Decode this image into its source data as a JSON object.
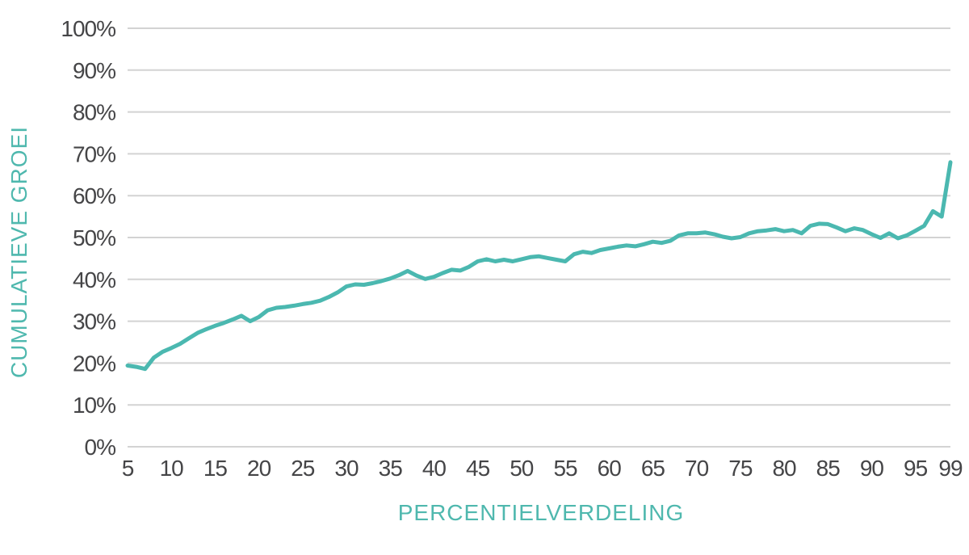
{
  "page": {
    "background": "#FFFFFF"
  },
  "chart_data": {
    "type": "line",
    "title": "",
    "xlabel": "PERCENTIELVERDELING",
    "ylabel": "CUMULATIEVE GROEI",
    "legend": "none",
    "grid": "horizontal",
    "xlim": [
      5,
      99
    ],
    "ylim": [
      0,
      100
    ],
    "x_ticks": [
      5,
      10,
      15,
      20,
      25,
      30,
      35,
      40,
      45,
      50,
      55,
      60,
      65,
      70,
      75,
      80,
      85,
      90,
      95,
      99
    ],
    "y_ticks": [
      "0%",
      "10%",
      "20%",
      "30%",
      "40%",
      "50%",
      "60%",
      "70%",
      "80%",
      "90%",
      "100%"
    ],
    "x": [
      5,
      6,
      7,
      8,
      9,
      10,
      11,
      12,
      13,
      14,
      15,
      16,
      17,
      18,
      19,
      20,
      21,
      22,
      23,
      24,
      25,
      26,
      27,
      28,
      29,
      30,
      31,
      32,
      33,
      34,
      35,
      36,
      37,
      38,
      39,
      40,
      41,
      42,
      43,
      44,
      45,
      46,
      47,
      48,
      49,
      50,
      51,
      52,
      53,
      54,
      55,
      56,
      57,
      58,
      59,
      60,
      61,
      62,
      63,
      64,
      65,
      66,
      67,
      68,
      69,
      70,
      71,
      72,
      73,
      74,
      75,
      76,
      77,
      78,
      79,
      80,
      81,
      82,
      83,
      84,
      85,
      86,
      87,
      88,
      89,
      90,
      91,
      92,
      93,
      94,
      95,
      96,
      97,
      98,
      99
    ],
    "values": [
      19.4,
      19.1,
      18.6,
      21.3,
      22.7,
      23.6,
      24.6,
      25.9,
      27.2,
      28.1,
      28.9,
      29.6,
      30.4,
      31.3,
      30.0,
      31.0,
      32.6,
      33.2,
      33.4,
      33.7,
      34.1,
      34.4,
      34.9,
      35.8,
      36.9,
      38.3,
      38.8,
      38.7,
      39.1,
      39.6,
      40.2,
      41.0,
      42.0,
      40.9,
      40.1,
      40.6,
      41.5,
      42.3,
      42.1,
      43.0,
      44.3,
      44.8,
      44.3,
      44.7,
      44.3,
      44.8,
      45.3,
      45.5,
      45.1,
      44.7,
      44.3,
      46.0,
      46.6,
      46.3,
      47.0,
      47.4,
      47.8,
      48.1,
      47.9,
      48.4,
      49.0,
      48.7,
      49.2,
      50.5,
      51.0,
      51.0,
      51.2,
      50.8,
      50.2,
      49.8,
      50.1,
      51.0,
      51.5,
      51.7,
      52.0,
      51.5,
      51.8,
      51.0,
      52.8,
      53.3,
      53.2,
      52.4,
      51.5,
      52.2,
      51.8,
      50.8,
      49.9,
      51.0,
      49.8,
      50.5,
      51.6,
      52.8,
      56.3,
      55.0,
      68.0
    ],
    "colors": {
      "line": "#4BB8B0",
      "axis_title": "#4FB8AE",
      "tick_label": "#454547",
      "gridline": "#D3D3D3",
      "background": "#FFFFFF"
    }
  }
}
